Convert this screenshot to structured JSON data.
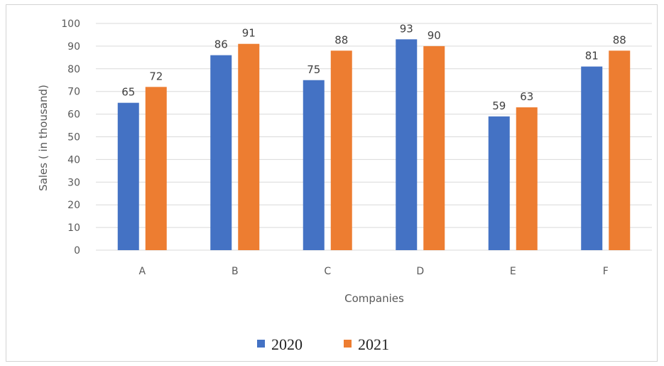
{
  "chart_data": {
    "type": "bar",
    "categories": [
      "A",
      "B",
      "C",
      "D",
      "E",
      "F"
    ],
    "series": [
      {
        "name": "2020",
        "values": [
          65,
          86,
          75,
          93,
          59,
          81
        ],
        "color": "#4472C4"
      },
      {
        "name": "2021",
        "values": [
          72,
          91,
          88,
          90,
          63,
          88
        ],
        "color": "#ED7D31"
      }
    ],
    "title": "",
    "xlabel": "Companies",
    "ylabel": "Sales ( in thousand)",
    "ylim": [
      0,
      100
    ],
    "yticks": [
      0,
      10,
      20,
      30,
      40,
      50,
      60,
      70,
      80,
      90,
      100
    ],
    "grid": true,
    "legend": "bottom-center",
    "gridline_color": "#d9d9d9"
  }
}
